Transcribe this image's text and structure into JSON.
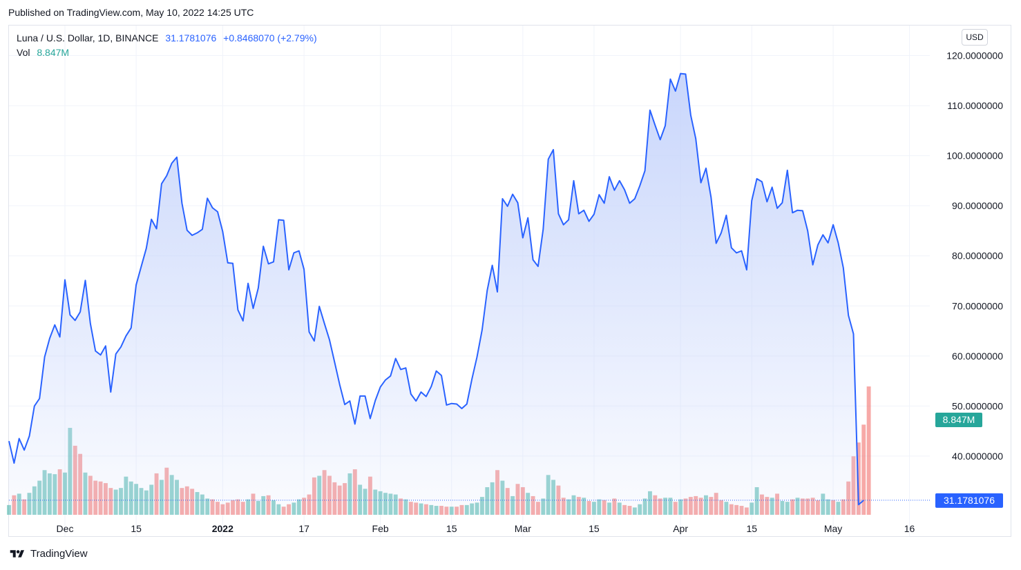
{
  "published": "Published on TradingView.com, May 10, 2022 14:25 UTC",
  "legend": {
    "symbol": "Luna / U.S. Dollar, 1D, BINANCE",
    "last": "31.1781076",
    "change": "+0.8468070 (+2.79%)",
    "vol_label": "Vol",
    "vol_value": "8.847M"
  },
  "currency_button": "USD",
  "footer": {
    "brand": "TradingView",
    "logo_icon": "tradingview-logo-icon"
  },
  "colors": {
    "line": "#2962ff",
    "area_top": "#c9d6fb",
    "vol_up": "#26a69a",
    "vol_down": "#ef5350",
    "grid": "#f0f3fa",
    "price_label_bg": "#2962ff",
    "vol_label_bg": "#26a69a"
  },
  "chart_data": {
    "type": "area",
    "title": "Luna / U.S. Dollar, 1D, BINANCE",
    "xlabel": "",
    "ylabel": "",
    "x_start": "2021-11-20",
    "x_end": "2022-05-10",
    "x_domain": [
      "2021-11-20",
      "2022-05-20"
    ],
    "ylim": [
      24,
      126
    ],
    "y_ticks": [
      "40.0000000",
      "50.0000000",
      "60.0000000",
      "70.0000000",
      "80.0000000",
      "90.0000000",
      "100.0000000",
      "110.0000000",
      "120.0000000"
    ],
    "x_ticks": [
      {
        "label": "Dec",
        "date": "2021-12-01"
      },
      {
        "label": "15",
        "date": "2021-12-15"
      },
      {
        "label": "2022",
        "date": "2022-01-01"
      },
      {
        "label": "17",
        "date": "2022-01-17"
      },
      {
        "label": "Feb",
        "date": "2022-02-01"
      },
      {
        "label": "15",
        "date": "2022-02-15"
      },
      {
        "label": "Mar",
        "date": "2022-03-01"
      },
      {
        "label": "15",
        "date": "2022-03-15"
      },
      {
        "label": "Apr",
        "date": "2022-04-01"
      },
      {
        "label": "15",
        "date": "2022-04-15"
      },
      {
        "label": "May",
        "date": "2022-05-01"
      },
      {
        "label": "16",
        "date": "2022-05-16"
      }
    ],
    "last_price_label": "31.1781076",
    "volume_label": "8.847M",
    "series": [
      {
        "values": [
          43,
          38.6,
          43.5,
          41.2,
          44,
          50,
          51.5,
          59.8,
          63.5,
          66.2,
          63.8,
          75.2,
          68.2,
          67.1,
          68.8,
          75.1,
          66.5,
          61,
          60.2,
          62,
          52.8,
          60.4,
          61.8,
          64,
          65.6,
          74.2,
          77.9,
          81.5,
          87.3,
          85.4,
          94.4,
          96,
          98.5,
          99.7,
          90.5,
          85.1,
          84.1,
          84.6,
          85.3,
          91.5,
          89.6,
          88.8,
          84.9,
          78.6,
          78.5,
          69.2,
          67,
          74.5,
          69.5,
          73.6,
          81.9,
          78.4,
          78.8,
          87.2,
          87.1,
          77.2,
          80.6,
          81,
          77.3,
          64.8,
          63,
          69.9,
          66.5,
          63.2,
          58.8,
          54.3,
          50.3,
          51,
          46.4,
          52,
          52,
          47.5,
          51.1,
          53.8,
          55.2,
          56,
          59.5,
          57.3,
          57.6,
          52.4,
          51,
          52.8,
          51.9,
          53.9,
          57,
          56.1,
          50.2,
          50.5,
          50.4,
          49.5,
          50.4,
          55.4,
          59.8,
          65.2,
          73.1,
          78.1,
          72.8,
          91.4,
          89.9,
          92.3,
          90.6,
          83.6,
          87.6,
          79.2,
          77.9,
          85.3,
          99.3,
          101.2,
          88.4,
          86.2,
          87.2,
          95,
          88.4,
          89.1,
          86.9,
          88.3,
          92.2,
          90.5,
          95.8,
          93.1,
          95,
          93.2,
          90.5,
          91.4,
          94,
          97,
          109.1,
          106.1,
          103.2,
          106,
          115.3,
          112.9,
          116.4,
          116.3,
          108.1,
          103.4,
          94.6,
          97.5,
          91.7,
          82.5,
          84.6,
          88.1,
          81.6,
          80.6,
          81,
          77.2,
          91,
          95.4,
          94.8,
          90.8,
          93.7,
          89.5,
          90.6,
          97.1,
          88.6,
          89.1,
          89,
          85,
          78.2,
          82.2,
          84.2,
          82.6,
          86.2,
          82.6,
          77.6,
          68.1,
          64.4,
          30.3,
          31.18
        ]
      }
    ],
    "volume": {
      "values": [
        1.2,
        2.4,
        2.6,
        1.9,
        2.7,
        3.5,
        4.2,
        5.5,
        5.1,
        5,
        5.6,
        5.2,
        10.7,
        8.5,
        7.5,
        5.2,
        4.8,
        4.2,
        4.1,
        3.9,
        3.3,
        3.1,
        3.3,
        4.7,
        4.1,
        3.8,
        3.3,
        3,
        3.7,
        5.1,
        4.3,
        5.8,
        4.9,
        4.3,
        3.3,
        3.5,
        3.2,
        2.8,
        2.5,
        2,
        1.9,
        1.6,
        1.3,
        1.5,
        1.8,
        1.9,
        1.6,
        1.9,
        2.6,
        1.7,
        2.3,
        2.4,
        1.8,
        1.3,
        1,
        1.3,
        1.5,
        1.9,
        2.1,
        2.5,
        4.6,
        4.8,
        5.5,
        4.8,
        4,
        3.6,
        3.9,
        5.1,
        5.6,
        3.7,
        3.2,
        4.7,
        3.1,
        2.9,
        2.7,
        2.6,
        2.5,
        2,
        1.9,
        1.6,
        1.5,
        1.4,
        1.3,
        1.2,
        1.1,
        1.1,
        1,
        1,
        1,
        1.2,
        1.2,
        1.4,
        1.5,
        2.2,
        3.4,
        4,
        5.5,
        4.2,
        3.3,
        2.3,
        3.8,
        3.4,
        2.7,
        2.3,
        1.6,
        2,
        4.9,
        4.3,
        3.6,
        2.1,
        1.9,
        2.4,
        2.2,
        2.1,
        1.7,
        1.6,
        1.9,
        1.8,
        1.5,
        2,
        1.5,
        1.2,
        1.1,
        0.9,
        1.3,
        2,
        2.9,
        2.4,
        2,
        2.1,
        2.1,
        1.6,
        1.9,
        2,
        2.2,
        2.3,
        2.1,
        2.4,
        2.2,
        2.7,
        1.8,
        1.6,
        1.3,
        1.2,
        1.1,
        0.9,
        1.5,
        3.4,
        2.5,
        2.2,
        2.1,
        2.6,
        1.7,
        1.6,
        1.9,
        2.1,
        2,
        2,
        2.1,
        1.8,
        2.6,
        1.9,
        1.8,
        1.6,
        1.9,
        4.1,
        7.2,
        8.9,
        11.1,
        15.8
      ],
      "up": [
        1,
        0,
        1,
        0,
        1,
        1,
        1,
        1,
        1,
        1,
        0,
        1,
        1,
        0,
        0,
        1,
        0,
        0,
        0,
        0,
        0,
        1,
        1,
        1,
        1,
        1,
        1,
        1,
        1,
        0,
        1,
        0,
        1,
        1,
        0,
        0,
        0,
        1,
        1,
        1,
        0,
        0,
        0,
        0,
        0,
        0,
        0,
        1,
        0,
        1,
        1,
        0,
        1,
        1,
        0,
        0,
        1,
        1,
        0,
        0,
        0,
        1,
        0,
        0,
        0,
        0,
        0,
        1,
        0,
        1,
        1,
        0,
        1,
        1,
        1,
        1,
        1,
        0,
        1,
        0,
        0,
        1,
        0,
        1,
        1,
        0,
        0,
        1,
        0,
        0,
        1,
        1,
        1,
        1,
        1,
        1,
        0,
        1,
        0,
        1,
        0,
        0,
        1,
        0,
        0,
        1,
        1,
        1,
        0,
        0,
        1,
        1,
        0,
        1,
        0,
        1,
        1,
        0,
        1,
        0,
        1,
        0,
        0,
        1,
        1,
        1,
        1,
        0,
        0,
        1,
        1,
        0,
        1,
        0,
        0,
        0,
        0,
        1,
        0,
        0,
        0,
        1,
        0,
        0,
        0,
        0,
        1,
        1,
        0,
        0,
        1,
        0,
        1,
        1,
        0,
        1,
        0,
        0,
        0,
        0,
        1,
        1,
        0,
        1,
        0,
        0,
        0,
        0,
        0,
        0,
        1
      ]
    }
  }
}
